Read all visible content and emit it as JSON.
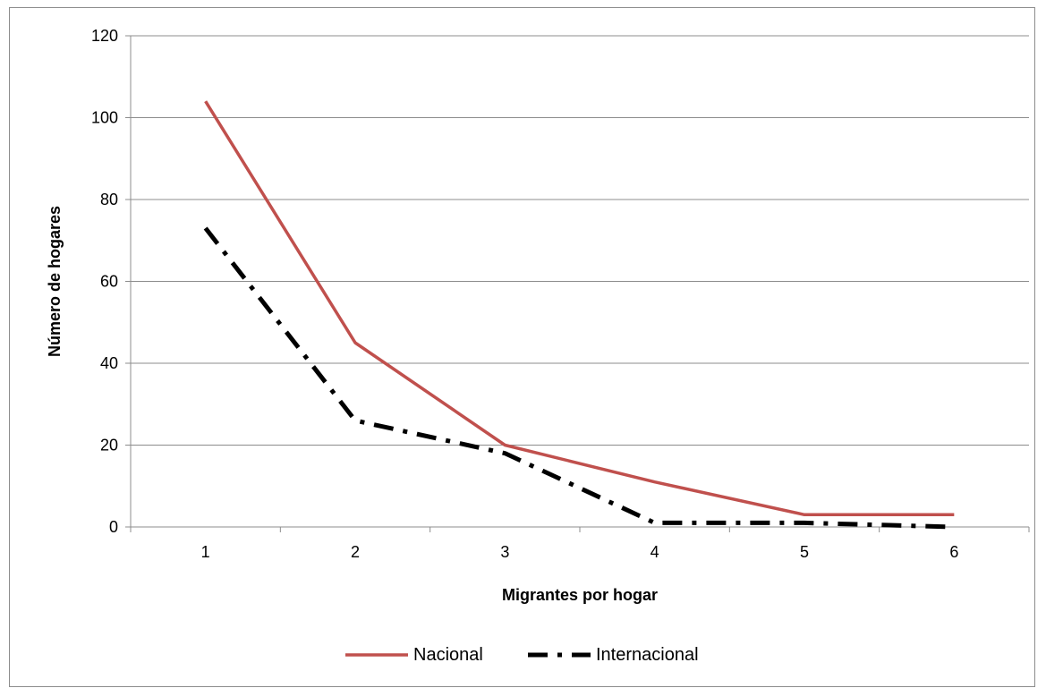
{
  "chart_data": {
    "type": "line",
    "title": "",
    "xlabel": "Migrantes por hogar",
    "ylabel": "Número de hogares",
    "x": [
      1,
      2,
      3,
      4,
      5,
      6
    ],
    "ylim": [
      0,
      120
    ],
    "yticks": [
      0,
      20,
      40,
      60,
      80,
      100,
      120
    ],
    "grid": true,
    "legend_position": "bottom",
    "series": [
      {
        "name": "Nacional",
        "values": [
          104,
          45,
          20,
          11,
          3,
          3
        ],
        "color": "#c0504d",
        "line_style": "solid"
      },
      {
        "name": "Internacional",
        "values": [
          73,
          26,
          18,
          1,
          1,
          0
        ],
        "color": "#000000",
        "line_style": "dash-dot"
      }
    ]
  }
}
